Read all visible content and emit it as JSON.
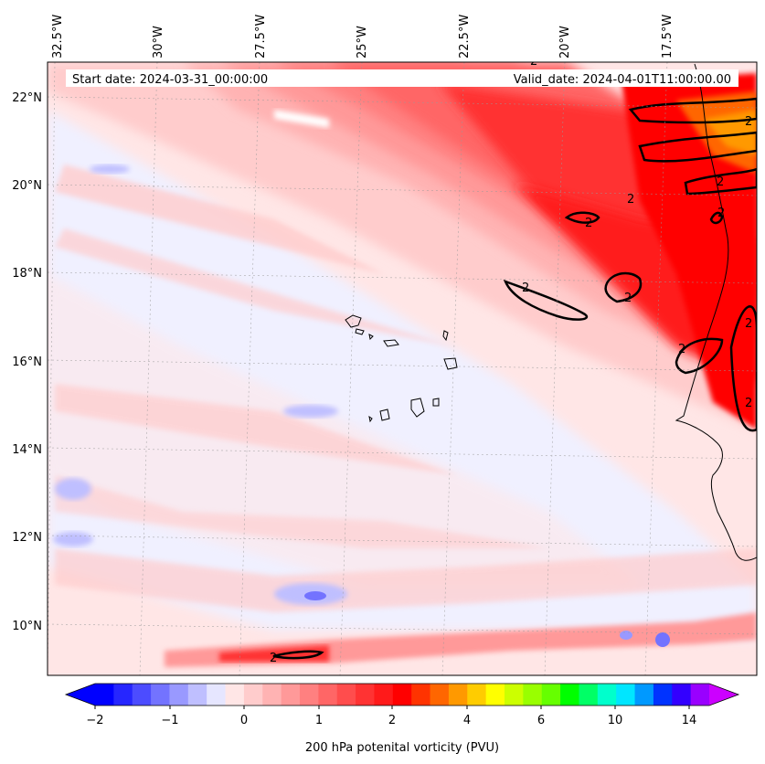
{
  "map": {
    "start_date": "Start date: 2024-03-31_00:00:00",
    "valid_date": "Valid_date: 2024-04-01T11:00:00.00",
    "lon_labels": [
      "32.5°W",
      "30°W",
      "27.5°W",
      "25°W",
      "22.5°W",
      "20°W",
      "17.5°W"
    ],
    "lat_labels": [
      "22°N",
      "20°N",
      "18°N",
      "16°N",
      "14°N",
      "12°N",
      "10°N"
    ],
    "contour_labels": [
      "2",
      "2",
      "2",
      "2",
      "2",
      "2",
      "2",
      "2",
      "2",
      "2",
      "2",
      "2"
    ],
    "extent": {
      "lon": [
        -32.5,
        -15.0
      ],
      "lat": [
        8.9,
        22.8
      ]
    }
  },
  "colorbar": {
    "label": "200 hPa potenital vorticity (PVU)",
    "ticks": [
      "−2",
      "−1",
      "0",
      "1",
      "2",
      "4",
      "6",
      "10",
      "14"
    ],
    "colors": [
      "#0000ff",
      "#2626ff",
      "#4c4cff",
      "#7373ff",
      "#9999ff",
      "#bfbfff",
      "#e6e6ff",
      "#ffe6e6",
      "#ffcccc",
      "#ffb3b3",
      "#ff9999",
      "#ff8080",
      "#ff6666",
      "#ff4d4d",
      "#ff3333",
      "#ff1a1a",
      "#ff0000",
      "#ff3300",
      "#ff6600",
      "#ff9900",
      "#ffcc00",
      "#ffff00",
      "#ccff00",
      "#99ff00",
      "#66ff00",
      "#00ff00",
      "#00ff66",
      "#00ffcc",
      "#00e6ff",
      "#0099ff",
      "#0033ff",
      "#3300ff",
      "#9900ff"
    ],
    "extend_low_color": "#0000ff",
    "extend_high_color": "#cc00ff"
  }
}
